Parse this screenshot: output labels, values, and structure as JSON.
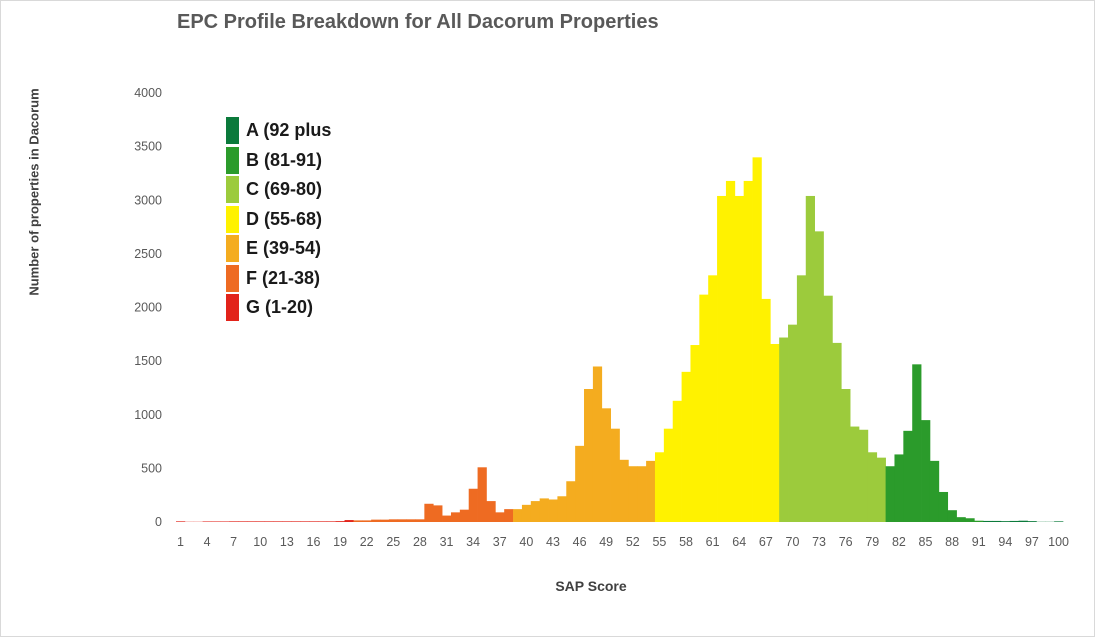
{
  "chart_data": {
    "type": "bar",
    "title": "EPC Profile Breakdown for All Dacorum Properties",
    "xlabel": "SAP Score",
    "ylabel": "Number of properties in Dacorum",
    "ylim": [
      0,
      4000
    ],
    "yticks": [
      "0",
      "500",
      "1000",
      "1500",
      "2000",
      "2500",
      "3000",
      "3500",
      "4000"
    ],
    "xticks": [
      "1",
      "4",
      "7",
      "10",
      "13",
      "16",
      "19",
      "22",
      "25",
      "28",
      "31",
      "34",
      "37",
      "40",
      "43",
      "46",
      "49",
      "52",
      "55",
      "58",
      "61",
      "64",
      "67",
      "70",
      "73",
      "76",
      "79",
      "82",
      "85",
      "88",
      "91",
      "94",
      "97",
      "100"
    ],
    "grid": false,
    "legend_position": "top-left",
    "bands": [
      {
        "label": "A (92 plus",
        "color": "#0b7a3b"
      },
      {
        "label": "B (81-91)",
        "color": "#2b9b2b"
      },
      {
        "label": "C (69-80)",
        "color": "#9ccb3c"
      },
      {
        "label": "D (55-68)",
        "color": "#fff200"
      },
      {
        "label": "E (39-54)",
        "color": "#f4ac1f"
      },
      {
        "label": "F (21-38)",
        "color": "#ee6b22"
      },
      {
        "label": "G (1-20)",
        "color": "#e2231a"
      }
    ],
    "categories": [
      1,
      2,
      3,
      4,
      5,
      6,
      7,
      8,
      9,
      10,
      11,
      12,
      13,
      14,
      15,
      16,
      17,
      18,
      19,
      20,
      21,
      22,
      23,
      24,
      25,
      26,
      27,
      28,
      29,
      30,
      31,
      32,
      33,
      34,
      35,
      36,
      37,
      38,
      39,
      40,
      41,
      42,
      43,
      44,
      45,
      46,
      47,
      48,
      49,
      50,
      51,
      52,
      53,
      54,
      55,
      56,
      57,
      58,
      59,
      60,
      61,
      62,
      63,
      64,
      65,
      66,
      67,
      68,
      69,
      70,
      71,
      72,
      73,
      74,
      75,
      76,
      77,
      78,
      79,
      80,
      81,
      82,
      83,
      84,
      85,
      86,
      87,
      88,
      89,
      90,
      91,
      92,
      93,
      94,
      95,
      96,
      97,
      98,
      99,
      100
    ],
    "values": [
      6,
      2,
      2,
      5,
      5,
      5,
      6,
      6,
      6,
      6,
      6,
      6,
      6,
      6,
      6,
      6,
      6,
      6,
      8,
      18,
      15,
      15,
      22,
      22,
      25,
      25,
      25,
      25,
      170,
      155,
      60,
      90,
      115,
      310,
      510,
      195,
      90,
      120,
      120,
      160,
      195,
      220,
      210,
      240,
      380,
      710,
      1240,
      1450,
      1060,
      870,
      580,
      520,
      520,
      570,
      650,
      870,
      1130,
      1400,
      1650,
      2120,
      2300,
      3040,
      3180,
      3040,
      3180,
      3400,
      2080,
      1660,
      1720,
      1840,
      2300,
      3040,
      2710,
      2110,
      1670,
      1240,
      890,
      860,
      650,
      600,
      520,
      630,
      850,
      1470,
      950,
      570,
      280,
      110,
      45,
      35,
      12,
      10,
      10,
      8,
      10,
      12,
      8,
      2,
      2,
      6
    ]
  }
}
